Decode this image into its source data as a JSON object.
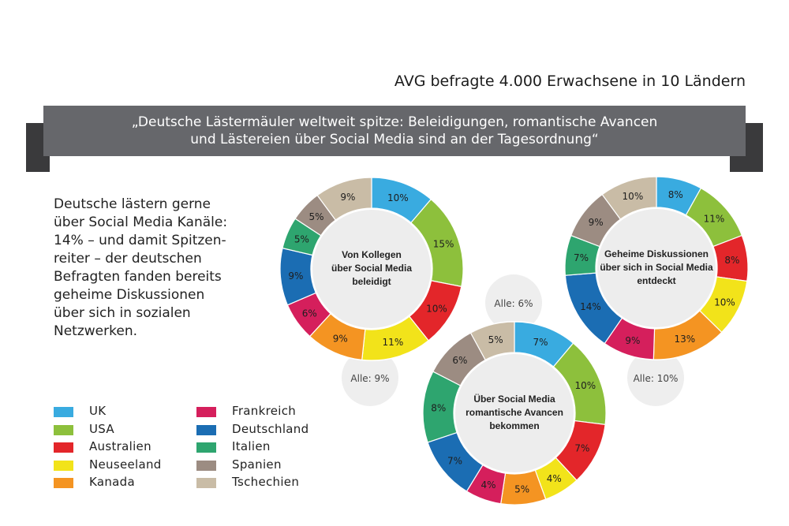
{
  "header": {
    "source": "AVG befragte 4.000 Erwachsene in 10 Ländern",
    "quote_line1": "„Deutsche Lästermäuler weltweit spitze: Beleidigungen, romantische Avancen",
    "quote_line2": "und Lästereien über Social Media sind an der Tagesordnung“"
  },
  "intro": {
    "line1": "Deutsche lästern gerne",
    "line2": "über Social Media Kanäle:",
    "line3": "14% – und damit Spitzen-",
    "line4": "reiter – der deutschen",
    "line5": "Befragten fanden bereits",
    "line6": "geheime Diskussionen",
    "line7": "über sich in sozialen",
    "line8": "Netzwerken."
  },
  "legend": [
    {
      "label": "UK",
      "color": "#39abe0"
    },
    {
      "label": "USA",
      "color": "#8dc03c"
    },
    {
      "label": "Australien",
      "color": "#e3262a"
    },
    {
      "label": "Neuseeland",
      "color": "#f2e31a"
    },
    {
      "label": "Kanada",
      "color": "#f49422"
    },
    {
      "label": "Frankreich",
      "color": "#d51f5c"
    },
    {
      "label": "Deutschland",
      "color": "#1b6db3"
    },
    {
      "label": "Italien",
      "color": "#2ea56f"
    },
    {
      "label": "Spanien",
      "color": "#9c8c82"
    },
    {
      "label": "Tschechien",
      "color": "#c9bca6"
    }
  ],
  "chart_data": [
    {
      "type": "pie",
      "title": "Von Kollegen über Social Media beleidigt",
      "title_lines": [
        "Von Kollegen",
        "über Social Media",
        "beleidigt"
      ],
      "overall_label": "Alle: 9%",
      "categories": [
        "UK",
        "USA",
        "Australien",
        "Neuseeland",
        "Kanada",
        "Frankreich",
        "Deutschland",
        "Italien",
        "Spanien",
        "Tschechien"
      ],
      "values": [
        10,
        15,
        10,
        11,
        9,
        6,
        9,
        5,
        5,
        9
      ],
      "labels": [
        "10%",
        "15%",
        "10%",
        "11%",
        "9%",
        "6%",
        "9%",
        "5%",
        "5%",
        "9%"
      ]
    },
    {
      "type": "pie",
      "title": "Über Social Media romantische Avancen bekommen",
      "title_lines": [
        "Über Social Media",
        "romantische Avancen",
        "bekommen"
      ],
      "overall_label": "Alle: 6%",
      "categories": [
        "UK",
        "USA",
        "Australien",
        "Neuseeland",
        "Kanada",
        "Frankreich",
        "Deutschland",
        "Italien",
        "Spanien",
        "Tschechien"
      ],
      "values": [
        7,
        10,
        7,
        4,
        5,
        4,
        7,
        8,
        6,
        5
      ],
      "labels": [
        "7%",
        "10%",
        "7%",
        "4%",
        "5%",
        "4%",
        "7%",
        "8%",
        "6%",
        "5%"
      ]
    },
    {
      "type": "pie",
      "title": "Geheime Diskussionen über sich in Social Media entdeckt",
      "title_lines": [
        "Geheime Diskussionen",
        "über sich in Social Media",
        "entdeckt"
      ],
      "overall_label": "Alle: 10%",
      "categories": [
        "UK",
        "USA",
        "Australien",
        "Neuseeland",
        "Kanada",
        "Frankreich",
        "Deutschland",
        "Italien",
        "Spanien",
        "Tschechien"
      ],
      "values": [
        8,
        11,
        8,
        10,
        13,
        9,
        14,
        7,
        9,
        10
      ],
      "labels": [
        "8%",
        "11%",
        "8%",
        "10%",
        "13%",
        "9%",
        "14%",
        "7%",
        "9%",
        "10%"
      ]
    }
  ]
}
